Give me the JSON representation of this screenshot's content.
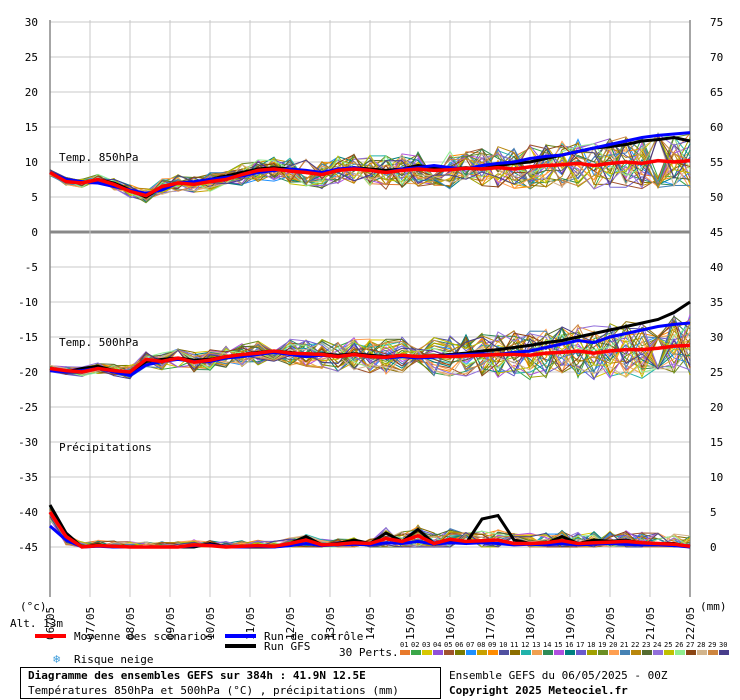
{
  "chart_data": {
    "type": "line",
    "title": "Diagramme des ensembles GEFS sur 384h : 41.9N 12.5E",
    "subtitle": "Températures 850hPa et 500hPa (°C) , précipitations (mm)",
    "run_info": "Ensemble GEFS du 06/05/2025 - 00Z",
    "copyright": "Copyright 2025 Meteociel.fr",
    "altitude": "Alt. 13m",
    "left_unit": "(°c)",
    "right_unit": "(mm)",
    "x_labels": [
      "06/05",
      "07/05",
      "08/05",
      "09/05",
      "10/05",
      "11/05",
      "12/05",
      "13/05",
      "14/05",
      "15/05",
      "16/05",
      "17/05",
      "18/05",
      "19/05",
      "20/05",
      "21/05",
      "22/05"
    ],
    "x_hours_range": [
      0,
      384
    ],
    "y_left_ticks": [
      30,
      25,
      20,
      15,
      10,
      5,
      0,
      -5,
      -10,
      -15,
      -20,
      -25,
      -30,
      -35,
      -40,
      -45
    ],
    "y_right_ticks": [
      75,
      70,
      65,
      60,
      55,
      50,
      45,
      40,
      35,
      30,
      25,
      20,
      15,
      10,
      5,
      0
    ],
    "panel_labels": {
      "t850": "Temp. 850hPa",
      "t500": "Temp. 500hPa",
      "precip": "Précipitations"
    },
    "panel_ranges": {
      "t850_left": [
        0,
        30
      ],
      "t500_left": [
        -45,
        0
      ],
      "precip_right_mm": [
        0,
        15
      ]
    },
    "series": [
      {
        "name": "Moyenne des scénarios",
        "color": "#ff0000",
        "t850": [
          8.5,
          7.2,
          7.0,
          7.5,
          6.8,
          5.8,
          5.2,
          6.5,
          7.0,
          6.8,
          7.2,
          7.5,
          8.2,
          8.8,
          9.0,
          8.7,
          8.5,
          8.2,
          8.8,
          9.0,
          8.8,
          8.5,
          8.8,
          9.0,
          8.8,
          8.9,
          9.1,
          9.0,
          9.2,
          9.0,
          9.3,
          9.5,
          9.6,
          9.8,
          9.5,
          9.8,
          10.0,
          9.8,
          10.2,
          10.0,
          10.2
        ],
        "t500": [
          -19.5,
          -19.8,
          -20.0,
          -19.5,
          -19.8,
          -20.0,
          -18.2,
          -18.5,
          -18.0,
          -18.6,
          -18.3,
          -17.8,
          -17.5,
          -17.3,
          -17.0,
          -17.3,
          -17.4,
          -17.5,
          -17.8,
          -17.5,
          -17.8,
          -17.9,
          -17.6,
          -17.8,
          -17.7,
          -17.8,
          -17.7,
          -17.6,
          -17.5,
          -17.5,
          -17.6,
          -17.3,
          -17.2,
          -17.0,
          -17.3,
          -17.0,
          -16.8,
          -16.8,
          -16.6,
          -16.3,
          -16.2
        ],
        "precip": [
          5.0,
          1.5,
          0.0,
          0.2,
          0.1,
          0.0,
          0.0,
          0.0,
          0.0,
          0.3,
          0.2,
          0.0,
          0.1,
          0.2,
          0.1,
          0.5,
          1.0,
          0.3,
          0.4,
          0.6,
          0.5,
          1.2,
          0.8,
          1.6,
          0.5,
          1.1,
          0.8,
          0.9,
          1.0,
          0.5,
          0.5,
          0.6,
          0.9,
          0.5,
          0.6,
          0.7,
          0.8,
          0.6,
          0.5,
          0.4,
          0.1
        ]
      },
      {
        "name": "Run de contrôle",
        "color": "#0000ff",
        "t850": [
          8.5,
          7.5,
          7.2,
          7.0,
          6.5,
          6.0,
          5.5,
          6.0,
          7.0,
          7.2,
          7.5,
          7.8,
          8.0,
          8.5,
          8.8,
          9.0,
          8.8,
          8.5,
          9.0,
          9.2,
          8.8,
          8.5,
          9.0,
          9.2,
          9.5,
          9.2,
          9.0,
          9.5,
          9.8,
          10.0,
          10.5,
          10.8,
          11.0,
          11.5,
          12.0,
          12.5,
          13.0,
          13.5,
          13.8,
          14.0,
          14.2
        ],
        "t500": [
          -19.8,
          -20.0,
          -19.8,
          -19.5,
          -20.0,
          -20.5,
          -19.0,
          -18.5,
          -18.2,
          -18.5,
          -18.5,
          -18.0,
          -17.8,
          -17.5,
          -17.2,
          -17.5,
          -17.8,
          -17.6,
          -17.8,
          -17.5,
          -17.8,
          -18.0,
          -17.8,
          -18.0,
          -17.9,
          -17.6,
          -17.5,
          -17.4,
          -17.5,
          -17.2,
          -17.0,
          -16.5,
          -16.0,
          -15.5,
          -15.8,
          -15.0,
          -14.5,
          -14.0,
          -13.5,
          -13.2,
          -13.0
        ],
        "precip": [
          3.0,
          1.0,
          0.0,
          0.1,
          0.0,
          0.0,
          0.0,
          0.0,
          0.0,
          0.2,
          0.3,
          0.0,
          0.0,
          0.1,
          0.0,
          0.2,
          0.5,
          0.2,
          0.3,
          0.4,
          0.3,
          0.6,
          0.5,
          0.8,
          0.4,
          0.6,
          0.5,
          0.6,
          0.5,
          0.3,
          0.4,
          0.3,
          0.5,
          0.3,
          0.4,
          0.5,
          0.4,
          0.3,
          0.3,
          0.2,
          0.0
        ]
      },
      {
        "name": "Run GFS",
        "color": "#000000",
        "t850": [
          8.5,
          7.5,
          7.0,
          7.5,
          7.0,
          6.0,
          5.0,
          6.5,
          7.0,
          7.0,
          7.5,
          8.0,
          8.5,
          9.0,
          9.2,
          9.0,
          8.5,
          8.2,
          8.8,
          9.2,
          9.0,
          8.8,
          9.0,
          9.5,
          9.2,
          9.0,
          9.2,
          9.0,
          9.5,
          9.8,
          10.0,
          10.5,
          11.0,
          11.5,
          12.0,
          12.2,
          12.5,
          13.0,
          13.2,
          13.5,
          13.0
        ],
        "t500": [
          -19.5,
          -20.0,
          -19.5,
          -19.2,
          -19.8,
          -20.2,
          -18.5,
          -18.2,
          -18.0,
          -18.3,
          -18.2,
          -17.8,
          -17.5,
          -17.2,
          -17.0,
          -17.2,
          -17.5,
          -17.4,
          -17.6,
          -17.4,
          -17.6,
          -17.8,
          -17.6,
          -17.8,
          -17.7,
          -17.5,
          -17.3,
          -17.0,
          -16.8,
          -16.5,
          -16.2,
          -15.8,
          -15.5,
          -15.0,
          -14.5,
          -14.0,
          -13.5,
          -13.0,
          -12.5,
          -11.5,
          -10.0
        ],
        "precip": [
          6.0,
          2.0,
          0.0,
          0.3,
          0.0,
          0.0,
          0.0,
          0.0,
          0.0,
          0.0,
          0.5,
          0.0,
          0.0,
          0.0,
          0.0,
          0.5,
          1.5,
          0.3,
          0.5,
          1.0,
          0.5,
          2.0,
          0.8,
          2.5,
          0.5,
          1.0,
          0.5,
          4.0,
          4.5,
          1.0,
          0.5,
          0.5,
          1.5,
          0.5,
          1.0,
          0.8,
          1.0,
          0.5,
          0.5,
          0.5,
          0.0
        ]
      }
    ],
    "perturbations": {
      "label": "30 Perts.",
      "count": 30,
      "labels": [
        "01",
        "02",
        "03",
        "04",
        "05",
        "06",
        "07",
        "08",
        "09",
        "10",
        "11",
        "12",
        "13",
        "14",
        "15",
        "16",
        "17",
        "18",
        "19",
        "20",
        "21",
        "22",
        "23",
        "24",
        "25",
        "26",
        "27",
        "28",
        "29",
        "30"
      ],
      "colors": [
        "#e87a2c",
        "#3aa648",
        "#d8c800",
        "#9050d8",
        "#a0522d",
        "#7b7b00",
        "#1e90ff",
        "#c8a000",
        "#ff8c00",
        "#5050a0",
        "#8c6e00",
        "#20b2aa",
        "#f0a050",
        "#2e8b57",
        "#b050e0",
        "#008080",
        "#6a5acd",
        "#a0a000",
        "#6b8e23",
        "#ff9f50",
        "#4682b4",
        "#b8860b",
        "#556b2f",
        "#9370db",
        "#c0c000",
        "#90ee90",
        "#8b4513",
        "#d2b48c",
        "#cd853f",
        "#483d8b"
      ]
    },
    "legend": {
      "mean": "Moyenne des scénarios",
      "control": "Run de contrôle",
      "gfs": "Run GFS",
      "snow": "Risque neige"
    },
    "grid": true
  }
}
